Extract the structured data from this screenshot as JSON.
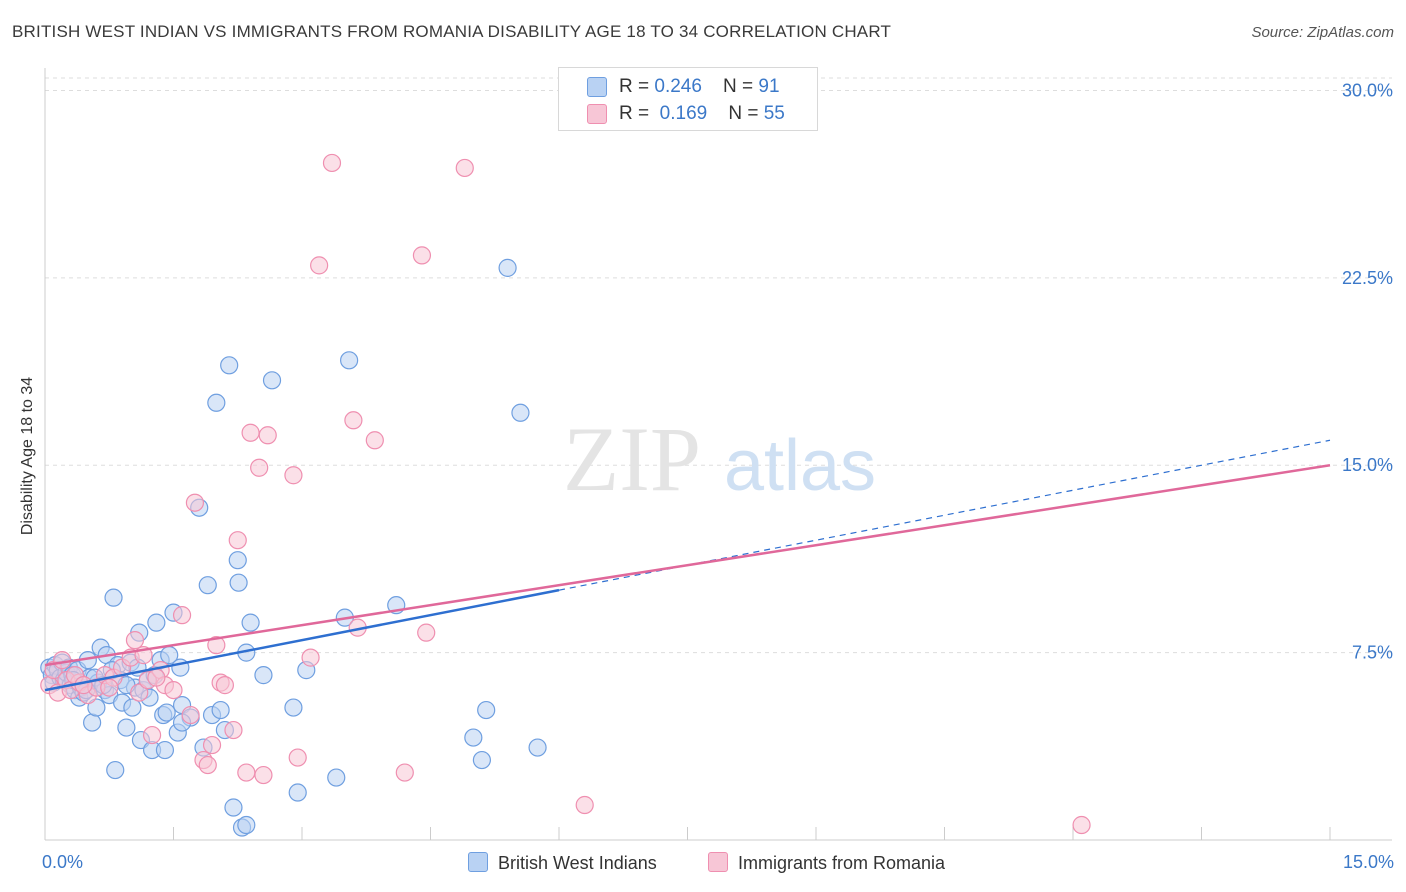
{
  "title": "BRITISH WEST INDIAN VS IMMIGRANTS FROM ROMANIA DISABILITY AGE 18 TO 34 CORRELATION CHART",
  "source": "Source: ZipAtlas.com",
  "watermark": {
    "zip": "ZIP",
    "atlas": "atlas"
  },
  "legend": {
    "series1": {
      "r_label": "R = ",
      "r_value": "0.246",
      "n_label": "N = ",
      "n_value": "91"
    },
    "series2": {
      "r_label": "R = ",
      "r_value": "0.169",
      "n_label": "N = ",
      "n_value": "55"
    }
  },
  "colors": {
    "blue": "#6f9fe0",
    "blue_fill": "#b9d2f3",
    "blue_line": "#2e6fd0",
    "pink": "#ef8fb0",
    "pink_fill": "#f7c6d6",
    "pink_line": "#e0689a",
    "tick_label": "#3b78c8"
  },
  "chart_data": {
    "type": "scatter",
    "title": "BRITISH WEST INDIAN VS IMMIGRANTS FROM ROMANIA DISABILITY AGE 18 TO 34 CORRELATION CHART",
    "xlabel": "",
    "ylabel": "Disability Age 18 to 34",
    "xlim": [
      0,
      15
    ],
    "ylim": [
      0,
      30.5
    ],
    "x_tick_labels": [
      "0.0%",
      "15.0%"
    ],
    "y_ticks": [
      7.5,
      15.0,
      22.5,
      30.0
    ],
    "y_tick_labels": [
      "7.5%",
      "15.0%",
      "22.5%",
      "30.0%"
    ],
    "series": [
      {
        "name": "British West Indians",
        "color": "#6f9fe0",
        "trend": {
          "x0": 0,
          "y0": 6.0,
          "x1": 6.0,
          "y1": 10.0,
          "dash_to_x": 15,
          "dash_to_y": 16.0
        },
        "points": [
          [
            0.05,
            6.9
          ],
          [
            0.08,
            6.6
          ],
          [
            0.1,
            6.3
          ],
          [
            0.12,
            7.0
          ],
          [
            0.15,
            6.8
          ],
          [
            0.18,
            6.5
          ],
          [
            0.2,
            7.1
          ],
          [
            0.22,
            6.4
          ],
          [
            0.25,
            6.7
          ],
          [
            0.28,
            6.9
          ],
          [
            0.3,
            6.2
          ],
          [
            0.32,
            6.6
          ],
          [
            0.35,
            6.0
          ],
          [
            0.38,
            6.8
          ],
          [
            0.4,
            5.7
          ],
          [
            0.42,
            6.1
          ],
          [
            0.45,
            5.9
          ],
          [
            0.5,
            7.2
          ],
          [
            0.52,
            6.5
          ],
          [
            0.55,
            4.7
          ],
          [
            0.6,
            5.3
          ],
          [
            0.62,
            6.3
          ],
          [
            0.65,
            7.7
          ],
          [
            0.7,
            6.0
          ],
          [
            0.72,
            7.4
          ],
          [
            0.75,
            5.8
          ],
          [
            0.8,
            9.7
          ],
          [
            0.82,
            2.8
          ],
          [
            0.85,
            7.0
          ],
          [
            0.88,
            6.4
          ],
          [
            0.9,
            5.5
          ],
          [
            0.95,
            4.5
          ],
          [
            1.0,
            7.1
          ],
          [
            1.05,
            6.1
          ],
          [
            1.1,
            8.3
          ],
          [
            1.12,
            4.0
          ],
          [
            1.15,
            6.0
          ],
          [
            1.2,
            6.4
          ],
          [
            1.22,
            5.7
          ],
          [
            1.25,
            3.6
          ],
          [
            1.3,
            8.7
          ],
          [
            1.35,
            7.2
          ],
          [
            1.38,
            5.0
          ],
          [
            1.4,
            3.6
          ],
          [
            1.45,
            7.4
          ],
          [
            1.5,
            9.1
          ],
          [
            1.55,
            4.3
          ],
          [
            1.58,
            6.9
          ],
          [
            1.6,
            5.4
          ],
          [
            1.7,
            4.9
          ],
          [
            1.8,
            13.3
          ],
          [
            1.85,
            3.7
          ],
          [
            1.9,
            10.2
          ],
          [
            1.95,
            5.0
          ],
          [
            2.0,
            17.5
          ],
          [
            2.05,
            5.2
          ],
          [
            2.1,
            4.4
          ],
          [
            2.15,
            19.0
          ],
          [
            2.2,
            1.3
          ],
          [
            2.25,
            11.2
          ],
          [
            2.3,
            0.5
          ],
          [
            2.35,
            7.5
          ],
          [
            2.4,
            8.7
          ],
          [
            2.55,
            6.6
          ],
          [
            2.65,
            18.4
          ],
          [
            2.9,
            5.3
          ],
          [
            2.95,
            1.9
          ],
          [
            3.05,
            6.8
          ],
          [
            3.4,
            2.5
          ],
          [
            3.5,
            8.9
          ],
          [
            3.55,
            19.2
          ],
          [
            4.1,
            9.4
          ],
          [
            5.0,
            4.1
          ],
          [
            5.1,
            3.2
          ],
          [
            5.15,
            5.2
          ],
          [
            5.4,
            22.9
          ],
          [
            5.55,
            17.1
          ],
          [
            5.75,
            3.7
          ],
          [
            0.58,
            6.5
          ],
          [
            0.68,
            6.2
          ],
          [
            1.02,
            5.3
          ],
          [
            1.28,
            6.6
          ],
          [
            0.48,
            6.0
          ],
          [
            0.78,
            6.8
          ],
          [
            1.42,
            5.1
          ],
          [
            0.33,
            6.4
          ],
          [
            2.26,
            10.3
          ],
          [
            1.6,
            4.7
          ],
          [
            2.35,
            0.6
          ],
          [
            1.08,
            6.9
          ],
          [
            0.95,
            6.2
          ]
        ]
      },
      {
        "name": "Immigrants from Romania",
        "color": "#ef8fb0",
        "trend": {
          "x0": 0,
          "y0": 7.0,
          "x1": 15,
          "y1": 15.0
        },
        "points": [
          [
            0.05,
            6.2
          ],
          [
            0.1,
            6.8
          ],
          [
            0.15,
            5.9
          ],
          [
            0.2,
            7.2
          ],
          [
            0.25,
            6.4
          ],
          [
            0.3,
            6.0
          ],
          [
            0.4,
            6.3
          ],
          [
            0.5,
            5.8
          ],
          [
            0.6,
            6.1
          ],
          [
            0.7,
            6.6
          ],
          [
            0.8,
            6.5
          ],
          [
            0.9,
            6.9
          ],
          [
            1.0,
            7.3
          ],
          [
            1.05,
            8.0
          ],
          [
            1.1,
            5.9
          ],
          [
            1.15,
            7.4
          ],
          [
            1.2,
            6.4
          ],
          [
            1.25,
            4.2
          ],
          [
            1.35,
            6.8
          ],
          [
            1.4,
            6.2
          ],
          [
            1.5,
            6.0
          ],
          [
            1.6,
            9.0
          ],
          [
            1.7,
            5.0
          ],
          [
            1.75,
            13.5
          ],
          [
            1.85,
            3.2
          ],
          [
            1.9,
            3.0
          ],
          [
            1.95,
            3.8
          ],
          [
            2.0,
            7.8
          ],
          [
            2.05,
            6.3
          ],
          [
            2.1,
            6.2
          ],
          [
            2.2,
            4.4
          ],
          [
            2.25,
            12.0
          ],
          [
            2.35,
            2.7
          ],
          [
            2.4,
            16.3
          ],
          [
            2.5,
            14.9
          ],
          [
            2.55,
            2.6
          ],
          [
            2.6,
            16.2
          ],
          [
            2.9,
            14.6
          ],
          [
            2.95,
            3.3
          ],
          [
            3.1,
            7.3
          ],
          [
            3.2,
            23.0
          ],
          [
            3.35,
            27.1
          ],
          [
            3.6,
            16.8
          ],
          [
            3.65,
            8.5
          ],
          [
            3.85,
            16.0
          ],
          [
            4.2,
            2.7
          ],
          [
            4.4,
            23.4
          ],
          [
            4.45,
            8.3
          ],
          [
            4.9,
            26.9
          ],
          [
            6.3,
            1.4
          ],
          [
            12.1,
            0.6
          ],
          [
            0.35,
            6.6
          ],
          [
            0.75,
            6.1
          ],
          [
            1.3,
            6.5
          ],
          [
            0.45,
            6.2
          ]
        ]
      }
    ]
  },
  "bottom_legend": {
    "series1": "British West Indians",
    "series2": "Immigrants from Romania"
  }
}
